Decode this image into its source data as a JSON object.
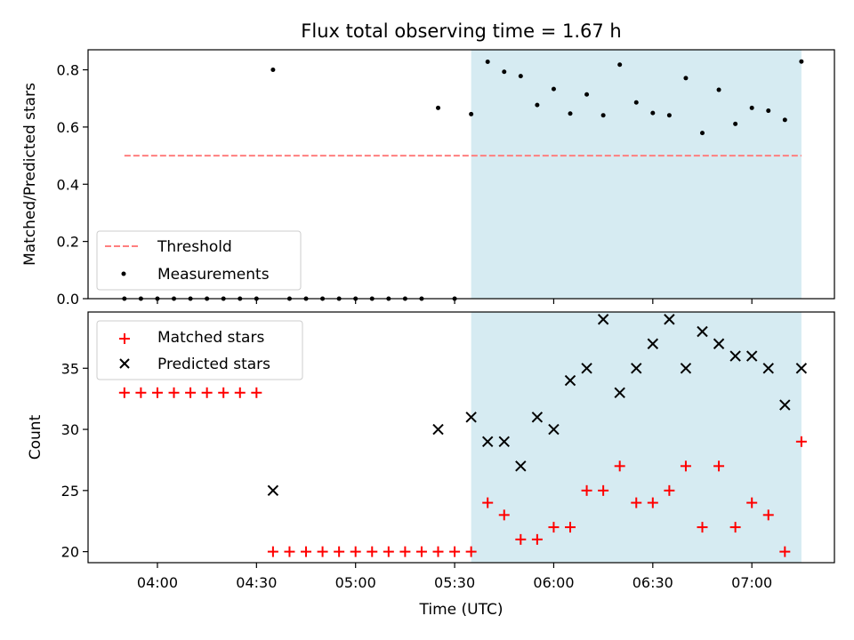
{
  "chart_data": [
    {
      "type": "scatter",
      "title": "Flux total observing time = 1.67 h",
      "xlabel": "",
      "ylabel": "Matched/Predicted stars",
      "ylim": [
        0,
        0.87
      ],
      "yticks": [
        "0.0",
        "0.2",
        "0.4",
        "0.6",
        "0.8"
      ],
      "legend": {
        "location": "lower-left",
        "entries": [
          "Threshold",
          "Measurements"
        ]
      },
      "highlight_span": {
        "x_start": "05:35",
        "x_end": "07:15",
        "color": "#add8e6"
      },
      "threshold": {
        "name": "Threshold",
        "value": 0.5,
        "x_start": "03:50",
        "x_end": "07:15",
        "color": "#ff7f7f",
        "style": "dashed"
      },
      "series": [
        {
          "name": "Measurements",
          "color": "#000000",
          "x": [
            "03:50",
            "03:55",
            "04:00",
            "04:05",
            "04:10",
            "04:15",
            "04:20",
            "04:25",
            "04:30",
            "04:35",
            "04:40",
            "04:45",
            "04:50",
            "04:55",
            "05:00",
            "05:05",
            "05:10",
            "05:15",
            "05:20",
            "05:25",
            "05:30",
            "05:35",
            "05:40",
            "05:45",
            "05:50",
            "05:55",
            "06:00",
            "06:05",
            "06:10",
            "06:15",
            "06:20",
            "06:25",
            "06:30",
            "06:35",
            "06:40",
            "06:45",
            "06:50",
            "06:55",
            "07:00",
            "07:05",
            "07:10",
            "07:15"
          ],
          "y": [
            0,
            0,
            0,
            0,
            0,
            0,
            0,
            0,
            0,
            0.8,
            0,
            0,
            0,
            0,
            0,
            0,
            0,
            0,
            0,
            0.667,
            0,
            0.645,
            0.828,
            0.793,
            0.778,
            0.677,
            0.733,
            0.647,
            0.714,
            0.641,
            0.818,
            0.686,
            0.649,
            0.641,
            0.771,
            0.579,
            0.73,
            0.611,
            0.667,
            0.657,
            0.625,
            0.829
          ]
        }
      ]
    },
    {
      "type": "scatter",
      "title": "",
      "xlabel": "Time (UTC)",
      "ylabel": "Count",
      "ylim": [
        19.1,
        39.6
      ],
      "yticks": [
        "20",
        "25",
        "30",
        "35"
      ],
      "xticks": [
        "04:00",
        "04:30",
        "05:00",
        "05:30",
        "06:00",
        "06:30",
        "07:00"
      ],
      "xlim": [
        "03:39",
        "07:25"
      ],
      "legend": {
        "location": "top-left",
        "entries": [
          "Matched stars",
          "Predicted stars"
        ]
      },
      "highlight_span": {
        "x_start": "05:35",
        "x_end": "07:15",
        "color": "#add8e6"
      },
      "series": [
        {
          "name": "Matched stars",
          "marker": "plus",
          "color": "#ff0000",
          "x": [
            "03:50",
            "03:55",
            "04:00",
            "04:05",
            "04:10",
            "04:15",
            "04:20",
            "04:25",
            "04:30",
            "04:35",
            "04:40",
            "04:45",
            "04:50",
            "04:55",
            "05:00",
            "05:05",
            "05:10",
            "05:15",
            "05:20",
            "05:25",
            "05:30",
            "05:35",
            "05:40",
            "05:45",
            "05:50",
            "05:55",
            "06:00",
            "06:05",
            "06:10",
            "06:15",
            "06:20",
            "06:25",
            "06:30",
            "06:35",
            "06:40",
            "06:45",
            "06:50",
            "06:55",
            "07:00",
            "07:05",
            "07:10",
            "07:15"
          ],
          "y": [
            33,
            33,
            33,
            33,
            33,
            33,
            33,
            33,
            33,
            20,
            20,
            20,
            20,
            20,
            20,
            20,
            20,
            20,
            20,
            20,
            20,
            20,
            24,
            23,
            21,
            21,
            22,
            22,
            25,
            25,
            27,
            24,
            24,
            25,
            27,
            22,
            27,
            22,
            24,
            23,
            20,
            29
          ]
        },
        {
          "name": "Predicted stars",
          "marker": "x",
          "color": "#000000",
          "x": [
            "04:35",
            "05:25",
            "05:35",
            "05:40",
            "05:45",
            "05:50",
            "05:55",
            "06:00",
            "06:05",
            "06:10",
            "06:15",
            "06:20",
            "06:25",
            "06:30",
            "06:35",
            "06:40",
            "06:45",
            "06:50",
            "06:55",
            "07:00",
            "07:05",
            "07:10",
            "07:15"
          ],
          "y": [
            25,
            30,
            31,
            29,
            29,
            27,
            31,
            30,
            34,
            35,
            39,
            33,
            35,
            37,
            39,
            35,
            38,
            37,
            36,
            36,
            35,
            32,
            35
          ]
        }
      ]
    }
  ]
}
